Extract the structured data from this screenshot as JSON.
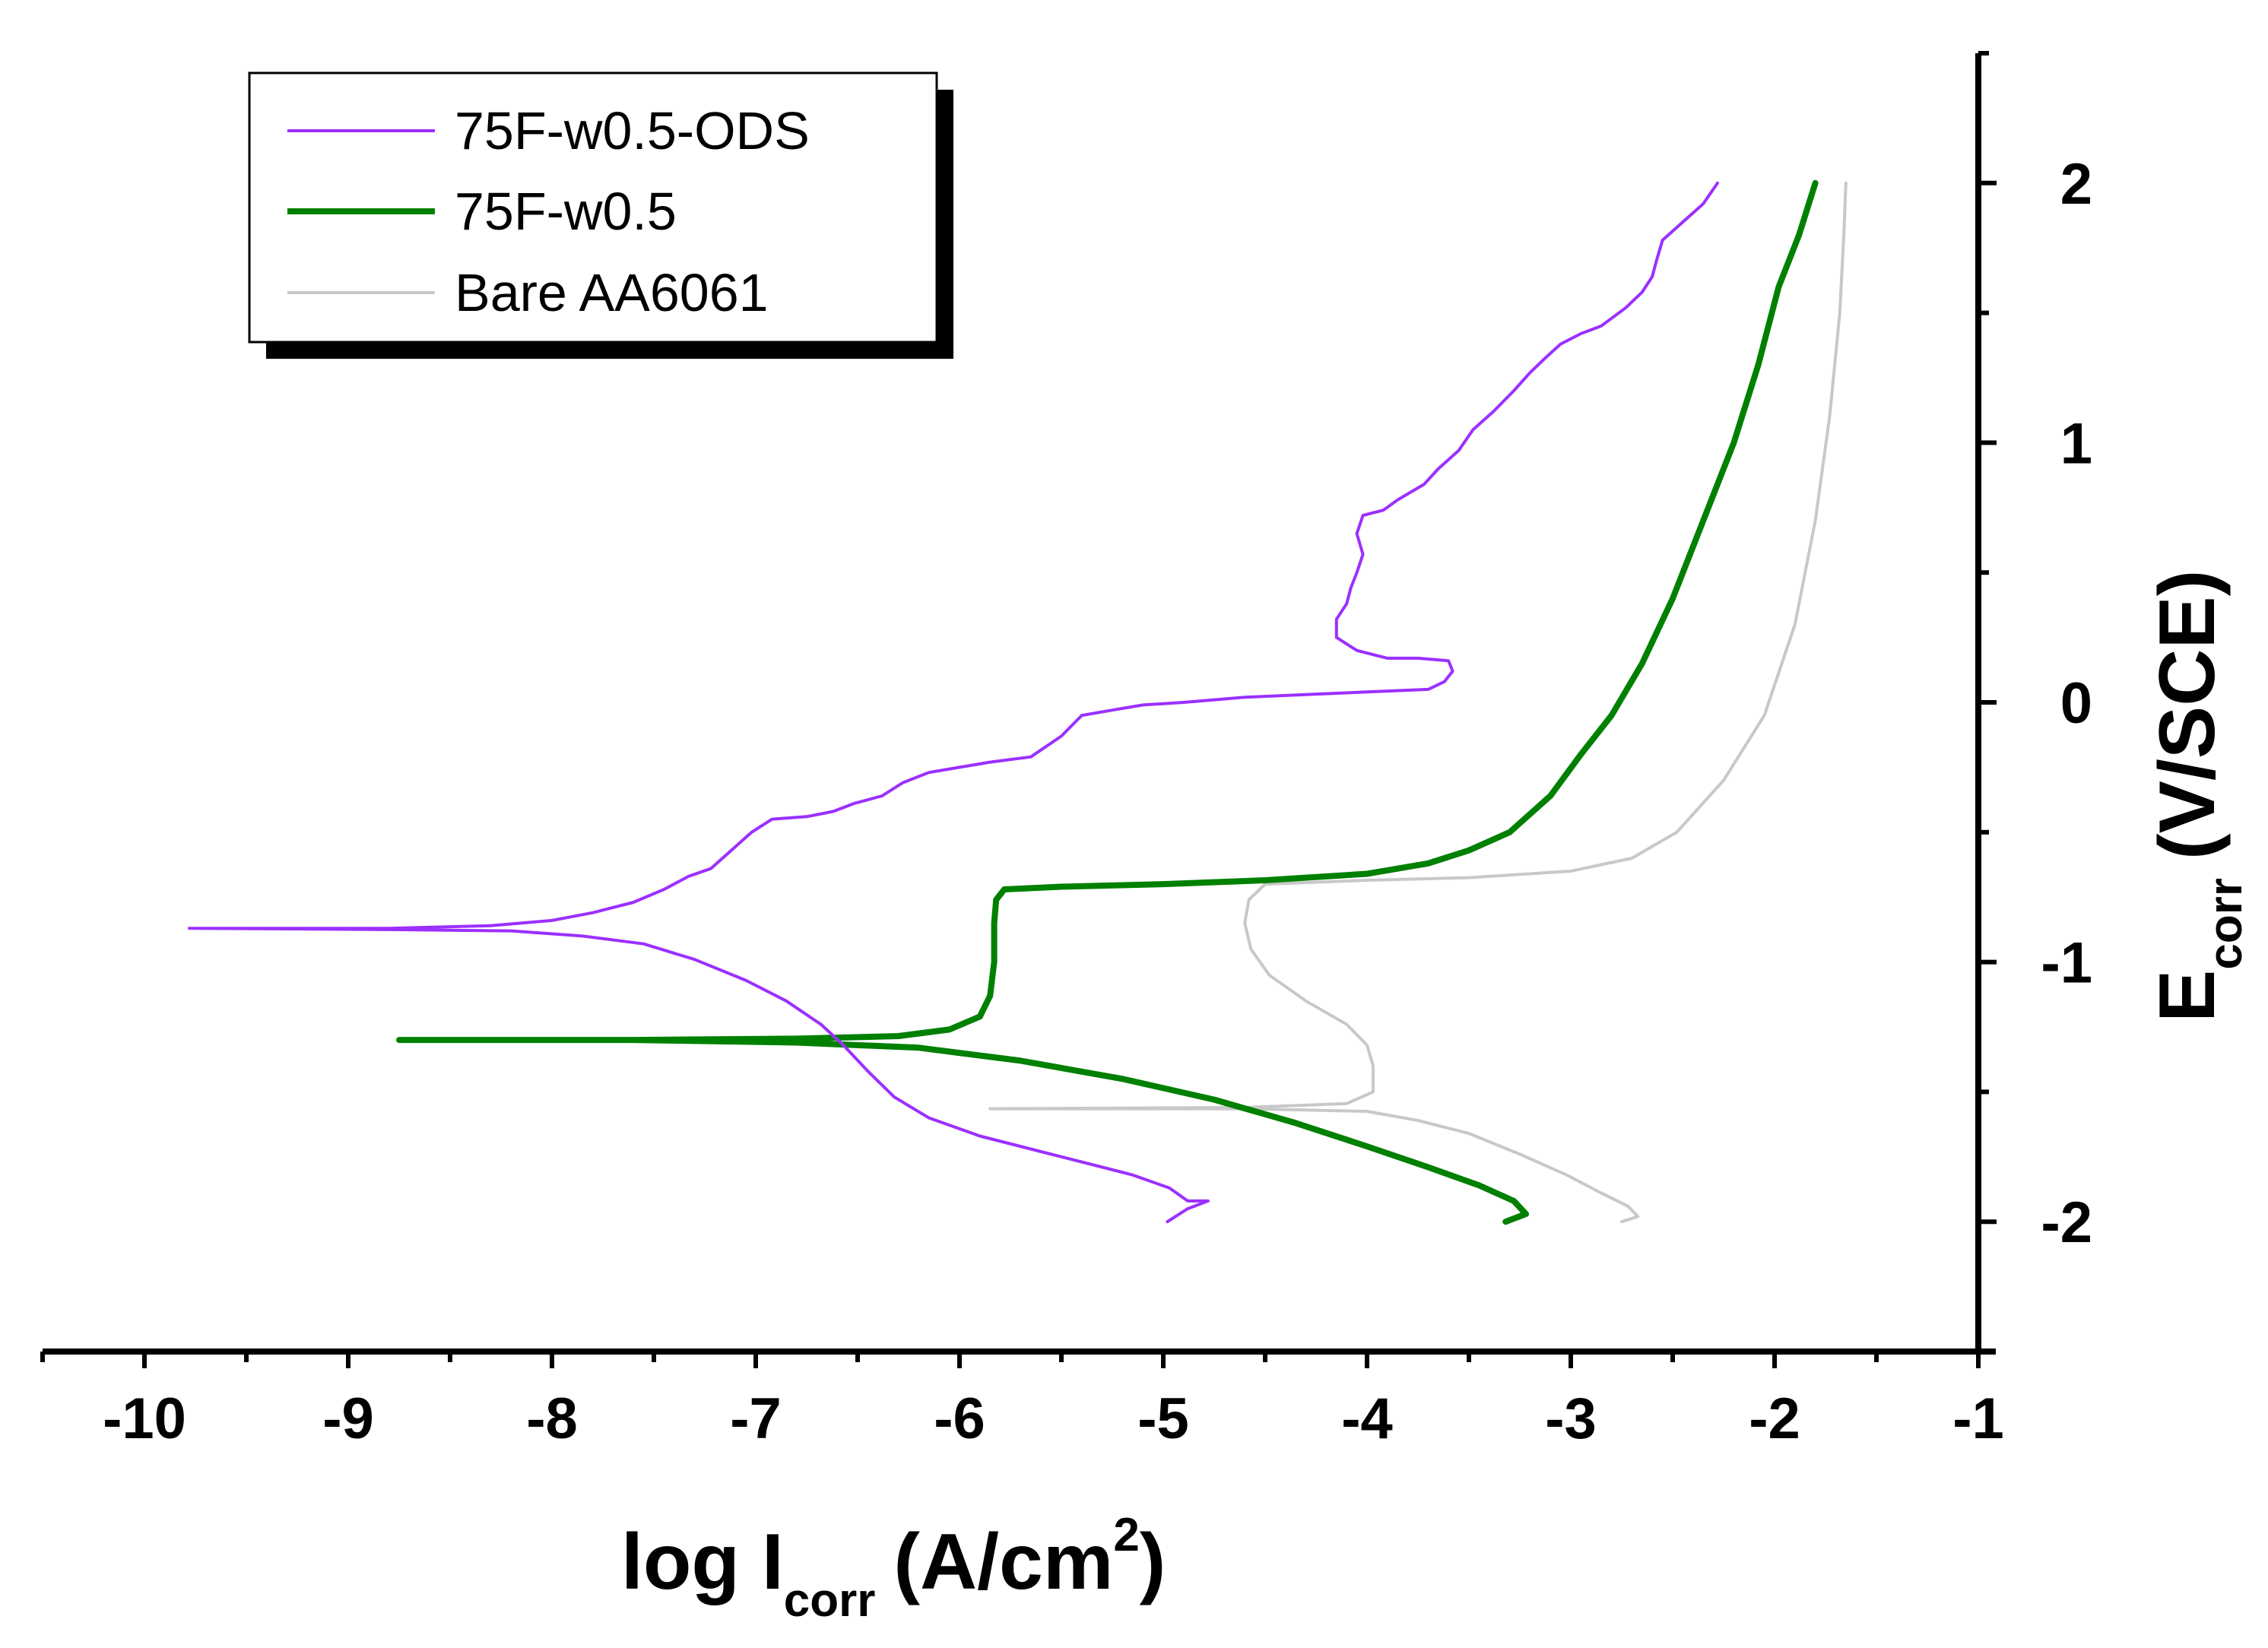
{
  "chart_data": {
    "type": "line",
    "title": "",
    "xlabel": {
      "main": "log I",
      "sub": "corr",
      "units": "(A/cm",
      "sup": "2",
      "close": ")"
    },
    "ylabel": {
      "main": "E",
      "sub": "corr",
      "units": "(V/SCE)"
    },
    "xlim": [
      -10.5,
      -1
    ],
    "ylim": [
      -2.5,
      2.5
    ],
    "xticks": [
      -10,
      -9,
      -8,
      -7,
      -6,
      -5,
      -4,
      -3,
      -2,
      -1
    ],
    "xtick_labels": [
      "-10",
      "-9",
      "-8",
      "-7",
      "-6",
      "-5",
      "-4",
      "-3",
      "-2",
      "-1"
    ],
    "yticks": [
      -2,
      -1,
      0,
      1,
      2
    ],
    "ytick_labels": [
      "-2",
      "-1",
      "0",
      "1",
      "2"
    ],
    "grid": false,
    "legend_position": "top-left",
    "series": [
      {
        "name": "75F-w0.5-ODS",
        "color": "#9B30FF",
        "width": 4,
        "points": [
          [
            -4.98,
            -2.0
          ],
          [
            -4.88,
            -1.95
          ],
          [
            -4.78,
            -1.92
          ],
          [
            -4.88,
            -1.92
          ],
          [
            -4.97,
            -1.87
          ],
          [
            -5.15,
            -1.82
          ],
          [
            -5.35,
            -1.78
          ],
          [
            -5.6,
            -1.73
          ],
          [
            -5.9,
            -1.67
          ],
          [
            -6.15,
            -1.6
          ],
          [
            -6.32,
            -1.52
          ],
          [
            -6.45,
            -1.42
          ],
          [
            -6.57,
            -1.32
          ],
          [
            -6.68,
            -1.24
          ],
          [
            -6.85,
            -1.15
          ],
          [
            -7.05,
            -1.07
          ],
          [
            -7.3,
            -0.99
          ],
          [
            -7.55,
            -0.93
          ],
          [
            -7.85,
            -0.9
          ],
          [
            -8.2,
            -0.88
          ],
          [
            -8.8,
            -0.875
          ],
          [
            -9.78,
            -0.87
          ],
          [
            -8.8,
            -0.87
          ],
          [
            -8.3,
            -0.86
          ],
          [
            -8.0,
            -0.84
          ],
          [
            -7.8,
            -0.81
          ],
          [
            -7.6,
            -0.77
          ],
          [
            -7.45,
            -0.72
          ],
          [
            -7.33,
            -0.67
          ],
          [
            -7.22,
            -0.64
          ],
          [
            -7.12,
            -0.57
          ],
          [
            -7.02,
            -0.5
          ],
          [
            -6.92,
            -0.45
          ],
          [
            -6.75,
            -0.44
          ],
          [
            -6.62,
            -0.42
          ],
          [
            -6.52,
            -0.39
          ],
          [
            -6.38,
            -0.36
          ],
          [
            -6.28,
            -0.31
          ],
          [
            -6.15,
            -0.27
          ],
          [
            -6.0,
            -0.25
          ],
          [
            -5.85,
            -0.23
          ],
          [
            -5.65,
            -0.21
          ],
          [
            -5.5,
            -0.13
          ],
          [
            -5.4,
            -0.05
          ],
          [
            -5.25,
            -0.03
          ],
          [
            -5.1,
            -0.01
          ],
          [
            -4.9,
            0.0
          ],
          [
            -4.6,
            0.02
          ],
          [
            -4.3,
            0.03
          ],
          [
            -4.0,
            0.04
          ],
          [
            -3.7,
            0.05
          ],
          [
            -3.62,
            0.08
          ],
          [
            -3.58,
            0.12
          ],
          [
            -3.6,
            0.16
          ],
          [
            -3.75,
            0.17
          ],
          [
            -3.9,
            0.17
          ],
          [
            -4.05,
            0.2
          ],
          [
            -4.15,
            0.25
          ],
          [
            -4.15,
            0.32
          ],
          [
            -4.1,
            0.38
          ],
          [
            -4.08,
            0.44
          ],
          [
            -4.05,
            0.5
          ],
          [
            -4.02,
            0.57
          ],
          [
            -4.05,
            0.65
          ],
          [
            -4.02,
            0.72
          ],
          [
            -3.92,
            0.74
          ],
          [
            -3.85,
            0.78
          ],
          [
            -3.72,
            0.84
          ],
          [
            -3.65,
            0.9
          ],
          [
            -3.55,
            0.97
          ],
          [
            -3.48,
            1.05
          ],
          [
            -3.38,
            1.12
          ],
          [
            -3.28,
            1.2
          ],
          [
            -3.2,
            1.27
          ],
          [
            -3.12,
            1.33
          ],
          [
            -3.05,
            1.38
          ],
          [
            -2.95,
            1.42
          ],
          [
            -2.85,
            1.45
          ],
          [
            -2.73,
            1.52
          ],
          [
            -2.65,
            1.58
          ],
          [
            -2.6,
            1.64
          ],
          [
            -2.58,
            1.7
          ],
          [
            -2.55,
            1.78
          ],
          [
            -2.45,
            1.85
          ],
          [
            -2.35,
            1.92
          ],
          [
            -2.28,
            2.0
          ]
        ]
      },
      {
        "name": "75F-w0.5",
        "color": "#008000",
        "width": 8,
        "points": [
          [
            -3.32,
            -2.0
          ],
          [
            -3.22,
            -1.97
          ],
          [
            -3.28,
            -1.92
          ],
          [
            -3.45,
            -1.86
          ],
          [
            -3.7,
            -1.79
          ],
          [
            -4.0,
            -1.71
          ],
          [
            -4.35,
            -1.62
          ],
          [
            -4.75,
            -1.53
          ],
          [
            -5.2,
            -1.45
          ],
          [
            -5.7,
            -1.38
          ],
          [
            -6.2,
            -1.33
          ],
          [
            -6.8,
            -1.31
          ],
          [
            -7.6,
            -1.3
          ],
          [
            -8.75,
            -1.3
          ],
          [
            -7.6,
            -1.3
          ],
          [
            -6.8,
            -1.295
          ],
          [
            -6.3,
            -1.285
          ],
          [
            -6.05,
            -1.26
          ],
          [
            -5.9,
            -1.21
          ],
          [
            -5.85,
            -1.13
          ],
          [
            -5.83,
            -1.0
          ],
          [
            -5.83,
            -0.85
          ],
          [
            -5.82,
            -0.76
          ],
          [
            -5.78,
            -0.72
          ],
          [
            -5.5,
            -0.71
          ],
          [
            -5.0,
            -0.7
          ],
          [
            -4.5,
            -0.685
          ],
          [
            -4.0,
            -0.66
          ],
          [
            -3.7,
            -0.62
          ],
          [
            -3.5,
            -0.57
          ],
          [
            -3.3,
            -0.5
          ],
          [
            -3.1,
            -0.36
          ],
          [
            -2.95,
            -0.2
          ],
          [
            -2.8,
            -0.05
          ],
          [
            -2.65,
            0.15
          ],
          [
            -2.5,
            0.4
          ],
          [
            -2.35,
            0.7
          ],
          [
            -2.2,
            1.0
          ],
          [
            -2.08,
            1.3
          ],
          [
            -1.98,
            1.6
          ],
          [
            -1.88,
            1.8
          ],
          [
            -1.8,
            2.0
          ]
        ]
      },
      {
        "name": "Bare AA6061",
        "color": "#C8C8C8",
        "width": 4,
        "points": [
          [
            -2.75,
            -2.0
          ],
          [
            -2.67,
            -1.98
          ],
          [
            -2.72,
            -1.94
          ],
          [
            -2.85,
            -1.89
          ],
          [
            -3.02,
            -1.82
          ],
          [
            -3.25,
            -1.74
          ],
          [
            -3.5,
            -1.66
          ],
          [
            -3.75,
            -1.61
          ],
          [
            -4.0,
            -1.575
          ],
          [
            -4.6,
            -1.565
          ],
          [
            -5.85,
            -1.565
          ],
          [
            -4.6,
            -1.56
          ],
          [
            -4.1,
            -1.545
          ],
          [
            -3.97,
            -1.5
          ],
          [
            -3.97,
            -1.4
          ],
          [
            -4.0,
            -1.32
          ],
          [
            -4.1,
            -1.24
          ],
          [
            -4.3,
            -1.15
          ],
          [
            -4.48,
            -1.05
          ],
          [
            -4.57,
            -0.95
          ],
          [
            -4.6,
            -0.85
          ],
          [
            -4.58,
            -0.76
          ],
          [
            -4.5,
            -0.7
          ],
          [
            -4.0,
            -0.685
          ],
          [
            -3.5,
            -0.675
          ],
          [
            -3.0,
            -0.65
          ],
          [
            -2.7,
            -0.6
          ],
          [
            -2.48,
            -0.5
          ],
          [
            -2.25,
            -0.3
          ],
          [
            -2.05,
            -0.05
          ],
          [
            -1.9,
            0.3
          ],
          [
            -1.8,
            0.7
          ],
          [
            -1.73,
            1.1
          ],
          [
            -1.68,
            1.5
          ],
          [
            -1.66,
            1.8
          ],
          [
            -1.65,
            2.0
          ]
        ]
      }
    ]
  }
}
